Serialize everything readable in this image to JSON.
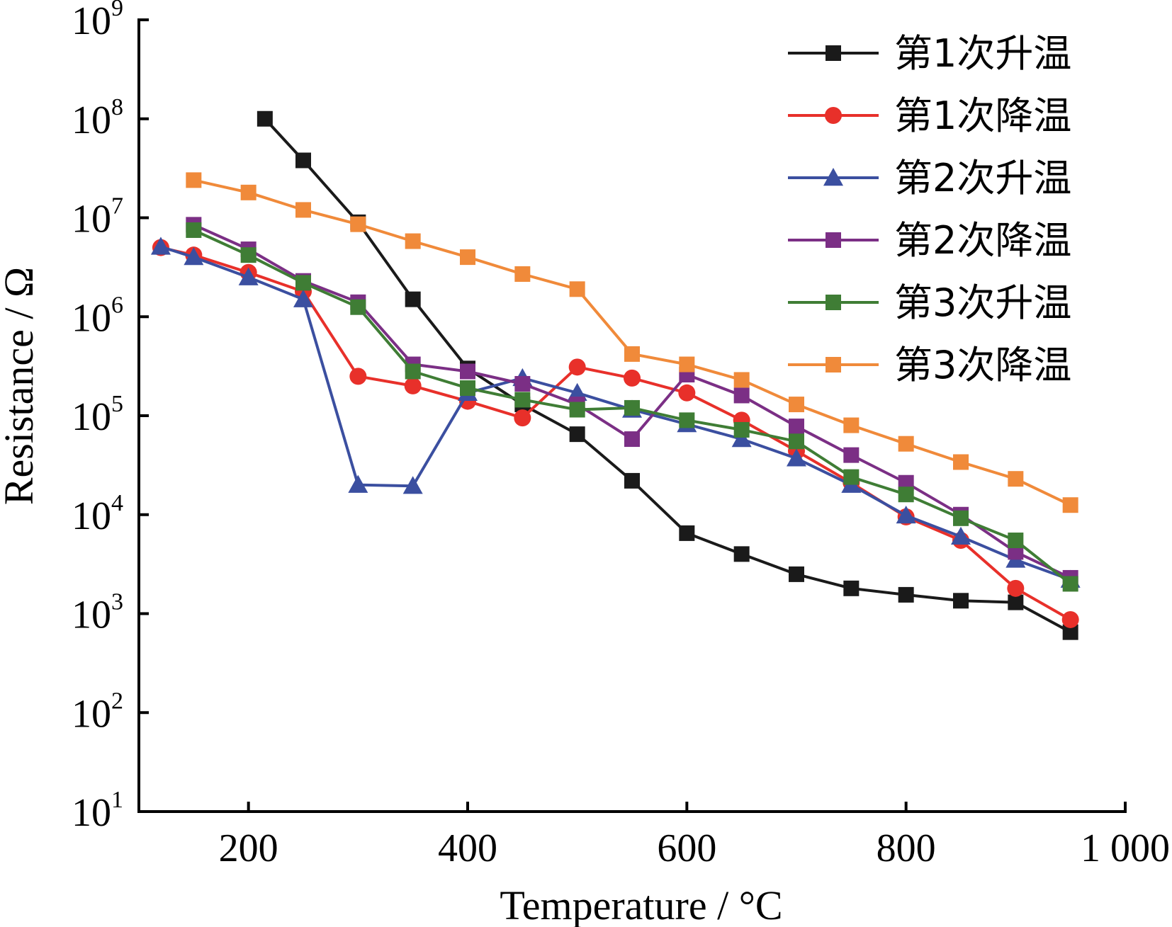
{
  "chart_data": {
    "type": "line",
    "title": "",
    "xlabel": "Temperature / °C",
    "ylabel": "Resistance / Ω",
    "xlim": [
      100,
      1000
    ],
    "ylim_exponent": [
      1,
      9
    ],
    "y_scale": "log",
    "x_ticks": [
      {
        "value": 200,
        "label": "200"
      },
      {
        "value": 400,
        "label": "400"
      },
      {
        "value": 600,
        "label": "600"
      },
      {
        "value": 800,
        "label": "800"
      },
      {
        "value": 1000,
        "label": "1 000"
      }
    ],
    "y_ticks": [
      {
        "base": "10",
        "exp": "1",
        "value": 10
      },
      {
        "base": "10",
        "exp": "2",
        "value": 100
      },
      {
        "base": "10",
        "exp": "3",
        "value": 1000
      },
      {
        "base": "10",
        "exp": "4",
        "value": 10000
      },
      {
        "base": "10",
        "exp": "5",
        "value": 100000
      },
      {
        "base": "10",
        "exp": "6",
        "value": 1000000
      },
      {
        "base": "10",
        "exp": "7",
        "value": 10000000
      },
      {
        "base": "10",
        "exp": "8",
        "value": 100000000
      },
      {
        "base": "10",
        "exp": "9",
        "value": 1000000000
      }
    ],
    "grid": false,
    "legend_position": "top-right",
    "series": [
      {
        "name": "第1次升温",
        "color": "#1a1a1a",
        "marker": "square",
        "x": [
          215,
          250,
          300,
          350,
          400,
          450,
          500,
          550,
          600,
          650,
          700,
          750,
          800,
          850,
          900,
          950
        ],
        "y": [
          100000000,
          38000000,
          9000000,
          1500000,
          300000,
          130000,
          65000,
          22000,
          6500,
          4000,
          2500,
          1800,
          1550,
          1350,
          1300,
          650
        ]
      },
      {
        "name": "第1次降温",
        "color": "#e8302a",
        "marker": "circle",
        "x": [
          120,
          150,
          200,
          250,
          300,
          350,
          400,
          450,
          500,
          550,
          600,
          650,
          700,
          750,
          800,
          850,
          900,
          950
        ],
        "y": [
          5000000,
          4200000,
          2800000,
          1800000,
          250000,
          200000,
          140000,
          95000,
          310000,
          240000,
          170000,
          90000,
          44000,
          21000,
          9500,
          5500,
          1800,
          870
        ]
      },
      {
        "name": "第2次升温",
        "color": "#3b4fa0",
        "marker": "triangle",
        "x": [
          120,
          150,
          200,
          250,
          300,
          350,
          400,
          450,
          500,
          550,
          600,
          650,
          700,
          750,
          800,
          850,
          900,
          950
        ],
        "y": [
          5100000,
          4000000,
          2500000,
          1500000,
          20000,
          19500,
          170000,
          240000,
          170000,
          115000,
          82000,
          58000,
          37000,
          20000,
          9800,
          6000,
          3500,
          2200
        ]
      },
      {
        "name": "第2次降温",
        "color": "#7b2f85",
        "marker": "square",
        "x": [
          150,
          200,
          250,
          300,
          350,
          400,
          450,
          500,
          550,
          600,
          650,
          700,
          750,
          800,
          850,
          900,
          950
        ],
        "y": [
          8500000,
          4800000,
          2300000,
          1400000,
          330000,
          280000,
          210000,
          130000,
          58000,
          260000,
          160000,
          78000,
          40000,
          21000,
          10000,
          4200,
          2300
        ]
      },
      {
        "name": "第3次升温",
        "color": "#3f7d35",
        "marker": "square",
        "x": [
          150,
          200,
          250,
          300,
          350,
          400,
          450,
          500,
          550,
          600,
          650,
          700,
          750,
          800,
          850,
          900,
          950
        ],
        "y": [
          7500000,
          4200000,
          2200000,
          1250000,
          280000,
          190000,
          145000,
          115000,
          120000,
          90000,
          72000,
          55000,
          24000,
          16000,
          9200,
          5500,
          2000
        ]
      },
      {
        "name": "第3次降温",
        "color": "#f08a3a",
        "marker": "square",
        "x": [
          150,
          200,
          250,
          300,
          350,
          400,
          450,
          500,
          550,
          600,
          650,
          700,
          750,
          800,
          850,
          900,
          950
        ],
        "y": [
          24000000,
          18000000,
          12000000,
          8600000,
          5800000,
          4000000,
          2700000,
          1900000,
          420000,
          330000,
          230000,
          130000,
          80000,
          52000,
          34000,
          23000,
          12500
        ]
      }
    ]
  }
}
